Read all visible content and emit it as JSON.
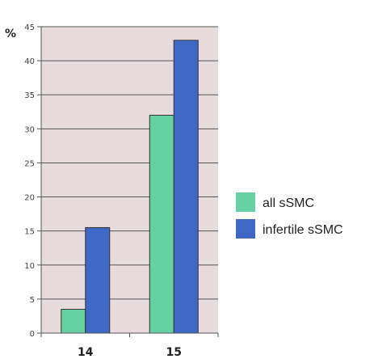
{
  "chart_data": {
    "type": "bar",
    "title": "",
    "xlabel": "",
    "ylabel": "%",
    "ylim": [
      0,
      45
    ],
    "yticks": [
      0,
      5,
      10,
      15,
      20,
      25,
      30,
      35,
      40,
      45
    ],
    "categories": [
      "14",
      "15"
    ],
    "series": [
      {
        "name": "all sSMC",
        "values": [
          3.5,
          32
        ],
        "color": "#66d1a3"
      },
      {
        "name": "infertile sSMC",
        "values": [
          15.5,
          43
        ],
        "color": "#3f68c6"
      }
    ],
    "plot_background": "#e8dbdd",
    "grid": true,
    "legend_position": "right"
  }
}
